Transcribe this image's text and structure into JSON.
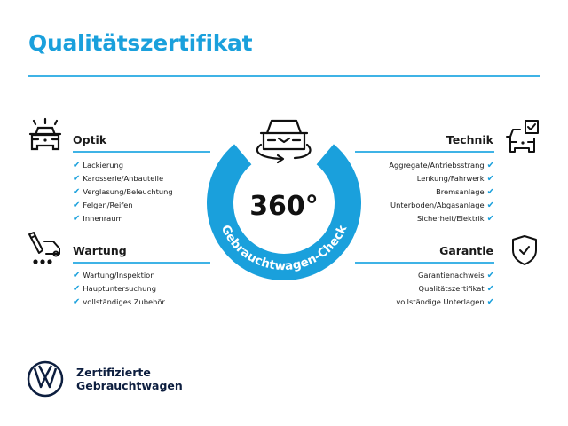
{
  "title": "Qualitätszertifikat",
  "center": {
    "number": "360°",
    "ring_text": "Gebrauchtwagen-Check"
  },
  "colors": {
    "accent": "#1aa0dc",
    "text": "#1a1a1a",
    "brand_navy": "#0d1e3f"
  },
  "sections": {
    "optik": {
      "label": "Optik",
      "icon": "car-lights-icon",
      "items": [
        "Lackierung",
        "Karosserie/Anbauteile",
        "Verglasung/Beleuchtung",
        "Felgen/Reifen",
        "Innenraum"
      ]
    },
    "wartung": {
      "label": "Wartung",
      "icon": "service-wrench-car-icon",
      "items": [
        "Wartung/Inspektion",
        "Hauptuntersuchung",
        "vollständiges Zubehör"
      ]
    },
    "technik": {
      "label": "Technik",
      "icon": "car-checkbox-icon",
      "items": [
        "Aggregate/Antriebsstrang",
        "Lenkung/Fahrwerk",
        "Bremsanlage",
        "Unterboden/Abgasanlage",
        "Sicherheit/Elektrik"
      ]
    },
    "garantie": {
      "label": "Garantie",
      "icon": "shield-check-icon",
      "items": [
        "Garantienachweis",
        "Qualitätszertifikat",
        "vollständige Unterlagen"
      ]
    }
  },
  "check_glyph": "✔",
  "brand": {
    "line1": "Zertifizierte",
    "line2": "Gebrauchtwagen",
    "logo": "VW"
  }
}
